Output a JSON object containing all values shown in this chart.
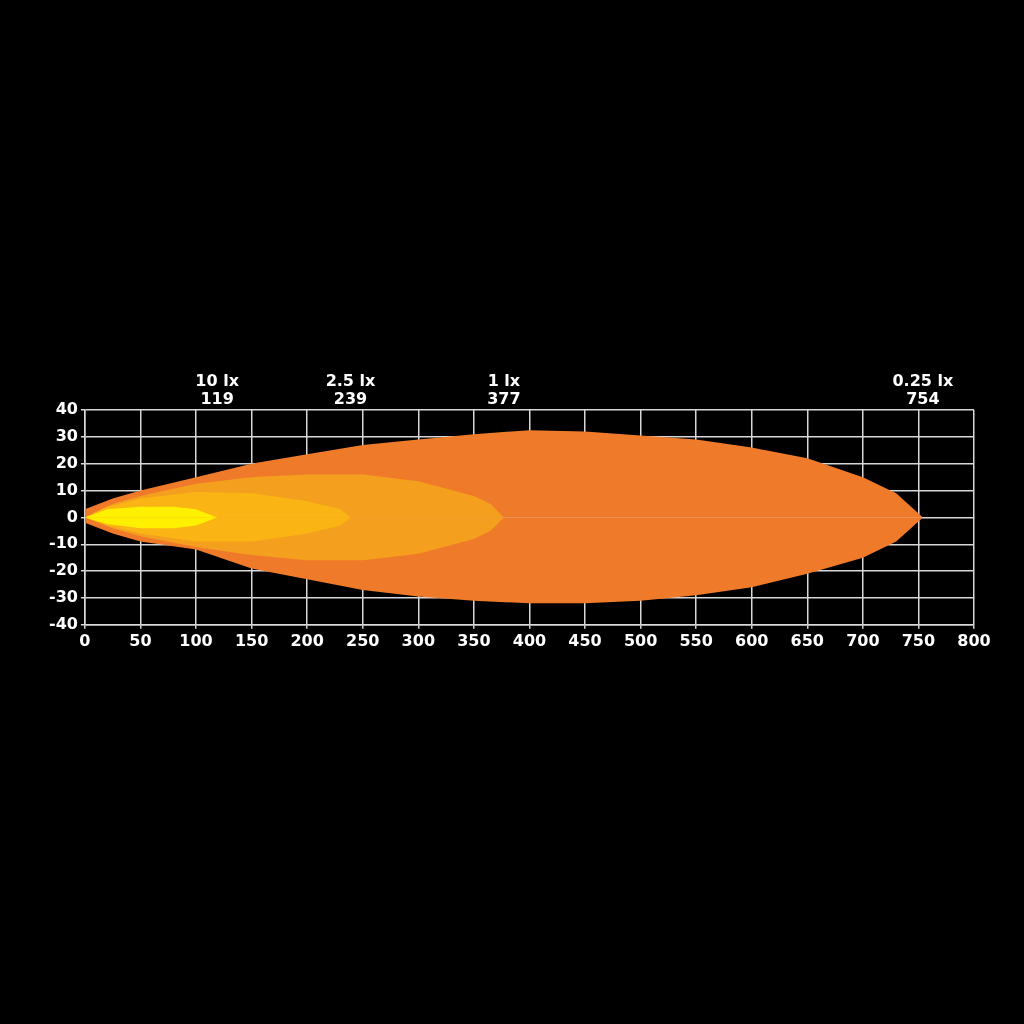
{
  "chart_data": {
    "type": "area",
    "legend": false,
    "grid": true,
    "xlim": [
      0,
      800
    ],
    "xticks": [
      0,
      50,
      100,
      150,
      200,
      250,
      300,
      350,
      400,
      450,
      500,
      550,
      600,
      650,
      700,
      750,
      800
    ],
    "ylim": [
      -40,
      40
    ],
    "yticks": [
      -40,
      -30,
      -20,
      -10,
      0,
      10,
      20,
      30,
      40
    ],
    "series": [
      {
        "color": "#ef7b2a",
        "x": [
          0,
          25,
          50,
          100,
          150,
          200,
          250,
          300,
          350,
          400,
          450,
          500,
          550,
          600,
          650,
          700,
          730,
          754
        ],
        "values": [
          3,
          7,
          10,
          15,
          20,
          23.5,
          27,
          29,
          31,
          32.5,
          32,
          30.5,
          29,
          26,
          22,
          15,
          9,
          0
        ]
      },
      {
        "color": "#ef7b2a",
        "x": [
          0,
          25,
          50,
          100,
          150,
          200,
          250,
          300,
          350,
          400,
          450,
          500,
          550,
          600,
          650,
          700,
          730,
          754
        ],
        "values": [
          -2,
          -6,
          -9,
          -12,
          -19,
          -23,
          -27,
          -29.5,
          -31,
          -32,
          -32,
          -31,
          -29,
          -26,
          -21,
          -15,
          -9,
          0
        ]
      },
      {
        "color": "#f59f1f",
        "x": [
          0,
          25,
          50,
          100,
          150,
          200,
          250,
          300,
          350,
          365,
          377
        ],
        "values": [
          0,
          5,
          8,
          12.5,
          15,
          16,
          16,
          13.5,
          8,
          5,
          0
        ]
      },
      {
        "color": "#f59f1f",
        "x": [
          0,
          25,
          50,
          100,
          150,
          200,
          250,
          300,
          350,
          365,
          377
        ],
        "values": [
          0,
          -4,
          -7,
          -11,
          -14,
          -16,
          -16,
          -13.5,
          -8,
          -5,
          0
        ]
      },
      {
        "color": "#fab514",
        "x": [
          0,
          20,
          50,
          100,
          150,
          200,
          230,
          239
        ],
        "values": [
          0,
          4,
          7,
          9.5,
          9,
          6,
          3,
          0
        ]
      },
      {
        "color": "#fab514",
        "x": [
          0,
          20,
          50,
          100,
          150,
          200,
          230,
          239
        ],
        "values": [
          0,
          -3,
          -6,
          -9,
          -9,
          -6,
          -3,
          0
        ]
      },
      {
        "color": "#fff000",
        "x": [
          0,
          20,
          50,
          80,
          100,
          119
        ],
        "values": [
          0,
          3,
          4,
          4,
          3,
          0
        ]
      },
      {
        "color": "#fff000",
        "x": [
          0,
          20,
          50,
          80,
          100,
          119
        ],
        "values": [
          0,
          -2.5,
          -4,
          -4,
          -3,
          0
        ]
      }
    ],
    "annotations": [
      "10 lx",
      "119",
      "2.5 lx",
      "239",
      "1 lx",
      "377",
      "0.25 lx",
      "754"
    ]
  }
}
